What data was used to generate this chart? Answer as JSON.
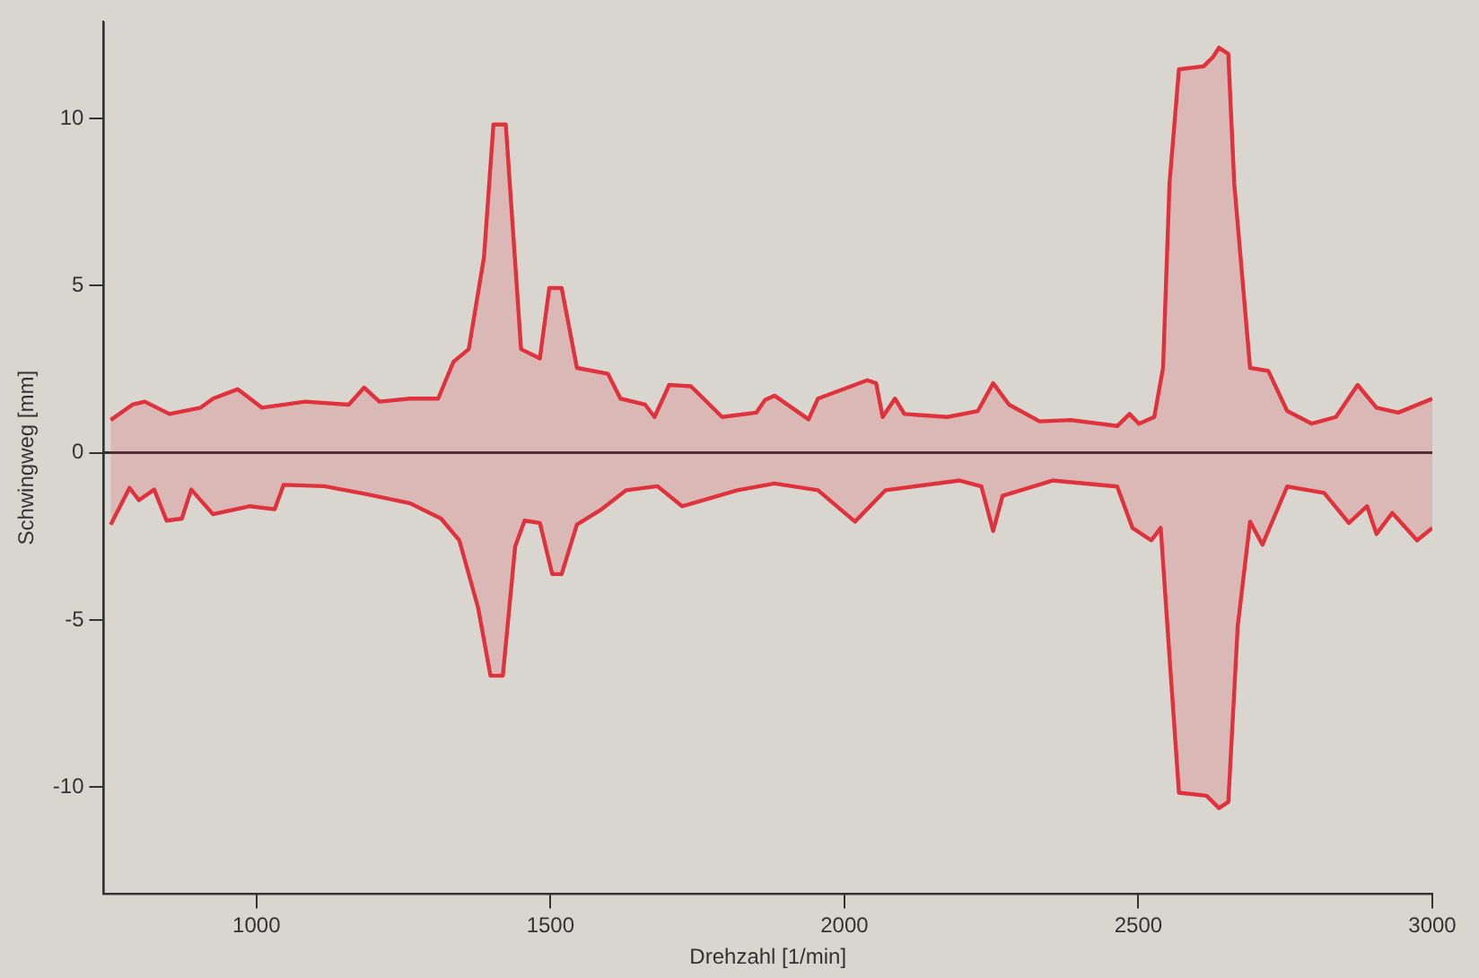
{
  "chart_data": {
    "type": "area",
    "xlabel": "Drehzahl [1/min]",
    "ylabel": "Schwingweg [mm]",
    "xlim": [
      740,
      3000
    ],
    "xticks": [
      1000,
      1500,
      2000,
      2500,
      3000
    ],
    "ylim": [
      -13.2,
      12.9
    ],
    "yticks": [
      -10,
      -5,
      0,
      5,
      10
    ],
    "grid": false,
    "legend": false,
    "marker": "none",
    "line_style": "solid",
    "ref_lines": [
      {
        "axis": "y",
        "value": 0,
        "color": "#333333"
      }
    ],
    "series": [
      {
        "color": "#e0323c",
        "x": [
          752,
          789,
          810,
          852,
          905,
          926,
          968,
          1009,
          1083,
          1157,
          1183,
          1209,
          1261,
          1309,
          1335,
          1361,
          1387,
          1403,
          1424,
          1450,
          1482,
          1498,
          1519,
          1545,
          1598,
          1619,
          1661,
          1677,
          1702,
          1739,
          1792,
          1850,
          1865,
          1881,
          1939,
          1955,
          2039,
          2054,
          2065,
          2086,
          2102,
          2175,
          2227,
          2253,
          2280,
          2332,
          2385,
          2464,
          2485,
          2501,
          2527,
          2542,
          2553,
          2569,
          2611,
          2627,
          2637,
          2653,
          2663,
          2690,
          2721,
          2753,
          2795,
          2836,
          2873,
          2905,
          2942,
          3000
        ],
        "values": [
          0.98,
          1.44,
          1.53,
          1.16,
          1.35,
          1.62,
          1.9,
          1.35,
          1.53,
          1.44,
          1.95,
          1.53,
          1.62,
          1.62,
          2.72,
          3.1,
          5.86,
          9.82,
          9.82,
          3.1,
          2.82,
          4.93,
          4.93,
          2.54,
          2.36,
          1.62,
          1.44,
          1.07,
          2.03,
          1.99,
          1.07,
          1.2,
          1.58,
          1.71,
          1.0,
          1.62,
          2.17,
          2.08,
          1.07,
          1.62,
          1.16,
          1.07,
          1.25,
          2.08,
          1.44,
          0.94,
          0.98,
          0.8,
          1.16,
          0.87,
          1.07,
          2.54,
          8.07,
          11.47,
          11.56,
          11.84,
          12.12,
          11.93,
          8.07,
          2.54,
          2.45,
          1.25,
          0.87,
          1.07,
          2.03,
          1.35,
          1.2,
          1.62
        ]
      },
      {
        "color": "#e0323c",
        "x": [
          752,
          784,
          800,
          826,
          847,
          873,
          889,
          926,
          989,
          1031,
          1046,
          1115,
          1188,
          1261,
          1314,
          1345,
          1377,
          1398,
          1419,
          1440,
          1456,
          1482,
          1503,
          1519,
          1545,
          1587,
          1629,
          1682,
          1724,
          1818,
          1881,
          1955,
          2018,
          2070,
          2196,
          2233,
          2253,
          2269,
          2354,
          2464,
          2490,
          2522,
          2538,
          2553,
          2569,
          2616,
          2637,
          2653,
          2669,
          2690,
          2711,
          2753,
          2816,
          2858,
          2889,
          2905,
          2932,
          2974,
          3000
        ],
        "values": [
          -2.15,
          -1.05,
          -1.42,
          -1.1,
          -2.03,
          -1.97,
          -1.1,
          -1.84,
          -1.6,
          -1.69,
          -0.96,
          -1.0,
          -1.24,
          -1.51,
          -1.97,
          -2.62,
          -4.64,
          -6.67,
          -6.67,
          -2.8,
          -2.03,
          -2.1,
          -3.63,
          -3.63,
          -2.15,
          -1.69,
          -1.12,
          -1.0,
          -1.6,
          -1.12,
          -0.92,
          -1.12,
          -2.06,
          -1.12,
          -0.83,
          -1.01,
          -2.34,
          -1.29,
          -0.83,
          -1.01,
          -2.25,
          -2.62,
          -2.25,
          -6.11,
          -10.17,
          -10.26,
          -10.63,
          -10.45,
          -5.19,
          -2.06,
          -2.75,
          -1.01,
          -1.2,
          -2.1,
          -1.6,
          -2.43,
          -1.8,
          -2.62,
          -2.25
        ]
      }
    ]
  }
}
